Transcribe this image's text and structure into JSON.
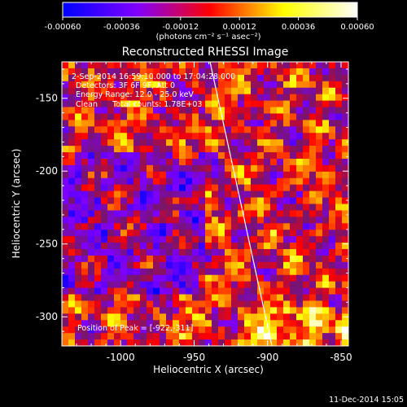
{
  "colorbar": {
    "tick_labels": [
      "-0.00060",
      "-0.00036",
      "-0.00012",
      "0.00012",
      "0.00036",
      "0.00060"
    ],
    "units_label": "(photons cm⁻² s⁻¹ asec⁻²)",
    "colors": [
      "#0000ff",
      "#7f00ff",
      "#ff0000",
      "#ffff00",
      "#ffffff"
    ]
  },
  "plot": {
    "title": "Reconstructed RHESSI Image",
    "annotations": {
      "time_range": "2-Sep-2014 16:59:10.000 to 17:04:28.000",
      "detectors": "Detectors: 3F 6F 9F, Att 0",
      "energy_range": "Energy Range: 12.0 - 25.0 keV",
      "clean_counts": "Clean      Total counts: 1.78E+03",
      "peak_position": "Position of Peak = [-922,-311]"
    }
  },
  "chart_data": {
    "type": "heatmap",
    "title": "Reconstructed RHESSI Image",
    "xlabel": "Heliocentric X (arcsec)",
    "ylabel": "Heliocentric Y (arcsec)",
    "xlim": [
      -1040,
      -845
    ],
    "ylim": [
      -320,
      -125
    ],
    "x_ticks": [
      "-1000",
      "-950",
      "-900",
      "-850"
    ],
    "y_ticks": [
      "-150",
      "-200",
      "-250",
      "-300"
    ],
    "x_tick_values": [
      -1000,
      -950,
      -900,
      -850
    ],
    "y_tick_values": [
      -150,
      -200,
      -250,
      -300
    ],
    "color_range": [
      -0.0006,
      0.0006
    ],
    "peak_position": [
      -922,
      -311
    ]
  },
  "footer": {
    "timestamp": "11-Dec-2014 15:05"
  }
}
